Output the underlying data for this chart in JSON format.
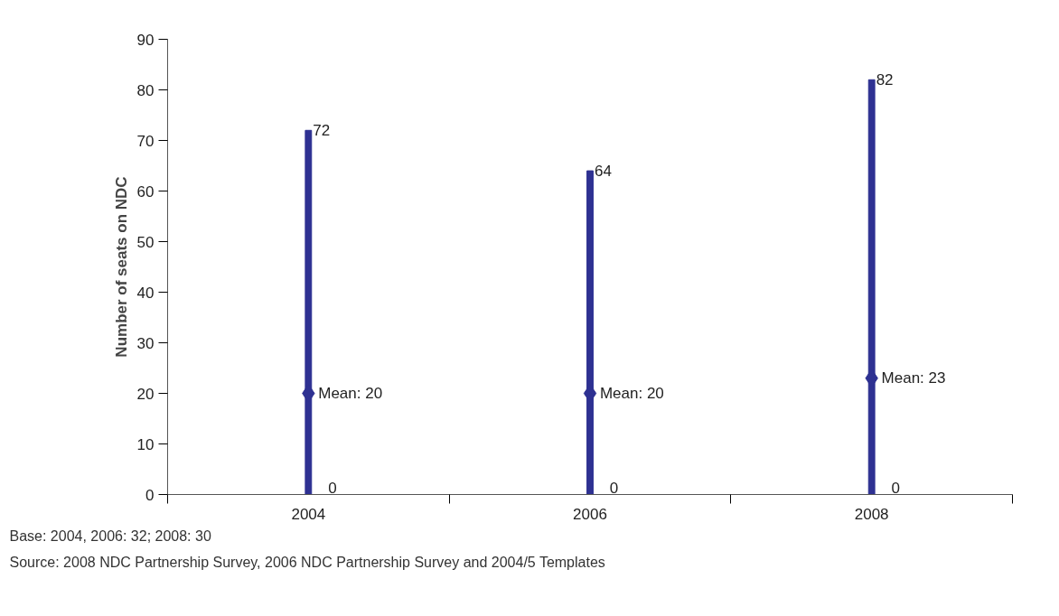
{
  "chart_data": {
    "type": "bar",
    "ylabel": "Number of seats on NDC",
    "categories": [
      "2004",
      "2006",
      "2008"
    ],
    "series": [
      {
        "color": "#2e3192",
        "base": [
          0,
          0,
          0
        ],
        "values": [
          72,
          64,
          82
        ],
        "value_labels": [
          "72",
          "64",
          "82"
        ]
      },
      {
        "type": "scatter",
        "color": "#2e3192",
        "values": [
          20,
          20,
          23
        ],
        "value_labels": [
          "Mean: 20",
          "Mean: 20",
          "Mean: 23"
        ],
        "marker": "diamond"
      }
    ],
    "ylim": [
      0,
      90
    ],
    "yticks": [
      0,
      10,
      20,
      30,
      40,
      50,
      60,
      70,
      80,
      90
    ],
    "grid": false,
    "annotations": [
      {
        "text": "0",
        "x": "2004",
        "y": 0
      },
      {
        "text": "0",
        "x": "2006",
        "y": 0
      },
      {
        "text": "0",
        "x": "2008",
        "y": 0
      },
      "Base: 2004, 2006: 32; 2008: 30",
      "Source: 2008 NDC Partnership Survey, 2006 NDC Partnership Survey and 2004/5 Templates"
    ]
  }
}
